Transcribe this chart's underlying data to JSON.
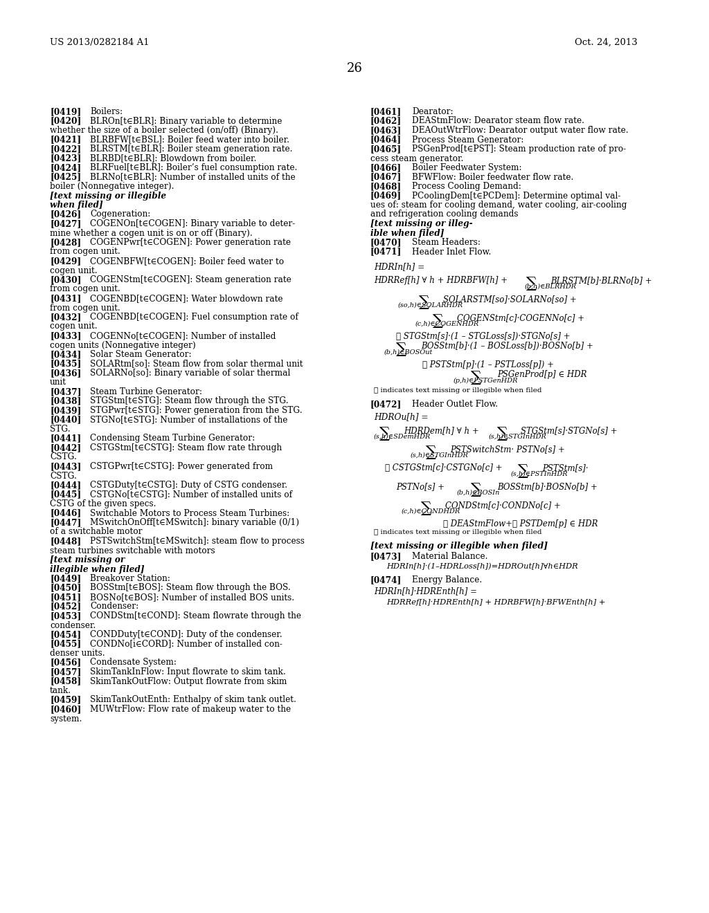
{
  "page_header_left": "US 2013/0282184 A1",
  "page_header_right": "Oct. 24, 2013",
  "page_number": "26",
  "bg": "#ffffff",
  "left_entries": [
    {
      "tag": "[0419]",
      "lines": [
        "Boilers:"
      ],
      "bold_end": false
    },
    {
      "tag": "[0420]",
      "lines": [
        "BLROn[t∈BLR]: Binary variable to determine",
        "whether the size of a boiler selected (on/off) (Binary)."
      ],
      "bold_end": false
    },
    {
      "tag": "[0421]",
      "lines": [
        "BLRBFW[t∈BSL]: Boiler feed water into boiler."
      ],
      "bold_end": false
    },
    {
      "tag": "[0422]",
      "lines": [
        "BLRSTM[t∈BLR]: Boiler steam generation rate."
      ],
      "bold_end": false
    },
    {
      "tag": "[0423]",
      "lines": [
        "BLRBD[t∈BLR]: Blowdown from boiler."
      ],
      "bold_end": false
    },
    {
      "tag": "[0424]",
      "lines": [
        "BLRFuel[t∈BLR]: Boiler’s fuel consumption rate."
      ],
      "bold_end": false
    },
    {
      "tag": "[0425]",
      "lines": [
        "BLRNo[t∈BLR]: Number of installed units of the",
        "boiler (Nonnegative integer). "
      ],
      "bold_end": true,
      "bold_lines": [
        "[text missing or illegible",
        "when filed]"
      ]
    },
    {
      "tag": "[0426]",
      "lines": [
        "Cogeneration:"
      ],
      "bold_end": false
    },
    {
      "tag": "[0427]",
      "lines": [
        "COGENOn[t∈COGEN]: Binary variable to deter-",
        "mine whether a cogen unit is on or off (Binary)."
      ],
      "bold_end": false
    },
    {
      "tag": "[0428]",
      "lines": [
        "COGENPwr[t∈COGEN]: Power generation rate",
        "from cogen unit."
      ],
      "bold_end": false
    },
    {
      "tag": "[0429]",
      "lines": [
        "COGENBFW[t∈COGEN]: Boiler feed water to",
        "cogen unit."
      ],
      "bold_end": false
    },
    {
      "tag": "[0430]",
      "lines": [
        "COGENStm[t∈COGEN]: Steam generation rate",
        "from cogen unit."
      ],
      "bold_end": false
    },
    {
      "tag": "[0431]",
      "lines": [
        "COGENBD[t∈COGEN]: Water blowdown rate",
        "from cogen unit."
      ],
      "bold_end": false
    },
    {
      "tag": "[0432]",
      "lines": [
        "COGENBD[t∈COGEN]: Fuel consumption rate of",
        "cogen unit."
      ],
      "bold_end": false
    },
    {
      "tag": "[0433]",
      "lines": [
        "COGENNo[t∈COGEN]: Number of installed",
        "cogen units (Nonnegative integer)"
      ],
      "bold_end": false
    },
    {
      "tag": "[0434]",
      "lines": [
        "Solar Steam Generator:"
      ],
      "bold_end": false
    },
    {
      "tag": "[0435]",
      "lines": [
        "SOLARtm[so]: Steam flow from solar thermal unit"
      ],
      "bold_end": false
    },
    {
      "tag": "[0436]",
      "lines": [
        "SOLARNo[so]: Binary variable of solar thermal",
        "unit"
      ],
      "bold_end": false
    },
    {
      "tag": "[0437]",
      "lines": [
        "Steam Turbine Generator:"
      ],
      "bold_end": false
    },
    {
      "tag": "[0438]",
      "lines": [
        "STGStm[t∈STG]: Steam flow through the STG."
      ],
      "bold_end": false
    },
    {
      "tag": "[0439]",
      "lines": [
        "STGPwr[t∈STG]: Power generation from the STG."
      ],
      "bold_end": false
    },
    {
      "tag": "[0440]",
      "lines": [
        "STGNo[t∈STG]: Number of installations of the",
        "STG."
      ],
      "bold_end": false
    },
    {
      "tag": "[0441]",
      "lines": [
        "Condensing Steam Turbine Generator:"
      ],
      "bold_end": false
    },
    {
      "tag": "[0442]",
      "lines": [
        "CSTGStm[t∈CSTG]: Steam flow rate through",
        "CSTG."
      ],
      "bold_end": false
    },
    {
      "tag": "[0443]",
      "lines": [
        "CSTGPwr[t∈CSTG]: Power generated from",
        "CSTG."
      ],
      "bold_end": false
    },
    {
      "tag": "[0444]",
      "lines": [
        "CSTGDuty[t∈CSTG]: Duty of CSTG condenser."
      ],
      "bold_end": false
    },
    {
      "tag": "[0445]",
      "lines": [
        "CSTGNo[t∈CSTG]: Number of installed units of",
        "CSTG of the given specs."
      ],
      "bold_end": false
    },
    {
      "tag": "[0446]",
      "lines": [
        "Switchable Motors to Process Steam Turbines:"
      ],
      "bold_end": false
    },
    {
      "tag": "[0447]",
      "lines": [
        "MSwitchOnOff[t∈MSwitch]: binary variable (0/1)",
        "of a switchable motor"
      ],
      "bold_end": false
    },
    {
      "tag": "[0448]",
      "lines": [
        "PSTSwitchStm[t∈MSwitch]: steam flow to process",
        "steam turbines switchable with motors "
      ],
      "bold_end": true,
      "bold_lines": [
        "[text missing or",
        "illegible when filed]"
      ]
    },
    {
      "tag": "[0449]",
      "lines": [
        "Breakover Station:"
      ],
      "bold_end": false
    },
    {
      "tag": "[0450]",
      "lines": [
        "BOSStm[t∈BOS]: Steam flow through the BOS."
      ],
      "bold_end": false
    },
    {
      "tag": "[0451]",
      "lines": [
        "BOSNo[t∈BOS]: Number of installed BOS units."
      ],
      "bold_end": false
    },
    {
      "tag": "[0452]",
      "lines": [
        "Condenser:"
      ],
      "bold_end": false
    },
    {
      "tag": "[0453]",
      "lines": [
        "CONDStm[t∈COND]: Steam flowrate through the",
        "condenser."
      ],
      "bold_end": false
    },
    {
      "tag": "[0454]",
      "lines": [
        "CONDDuty[t∈COND]: Duty of the condenser."
      ],
      "bold_end": false
    },
    {
      "tag": "[0455]",
      "lines": [
        "CONDNo[i∈CORD]: Number of installed con-",
        "denser units."
      ],
      "bold_end": false
    },
    {
      "tag": "[0456]",
      "lines": [
        "Condensate System:"
      ],
      "bold_end": false
    },
    {
      "tag": "[0457]",
      "lines": [
        "SkimTankInFlow: Input flowrate to skim tank."
      ],
      "bold_end": false
    },
    {
      "tag": "[0458]",
      "lines": [
        "SkimTankOutFlow: Output flowrate from skim",
        "tank."
      ],
      "bold_end": false
    },
    {
      "tag": "[0459]",
      "lines": [
        "SkimTankOutEnth: Enthalpy of skim tank outlet."
      ],
      "bold_end": false
    },
    {
      "tag": "[0460]",
      "lines": [
        "MUWtrFlow: Flow rate of makeup water to the",
        "system."
      ],
      "bold_end": false
    }
  ],
  "right_entries": [
    {
      "tag": "[0461]",
      "lines": [
        "Dearator:"
      ],
      "bold_end": false
    },
    {
      "tag": "[0462]",
      "lines": [
        "DEAStmFlow: Dearator steam flow rate."
      ],
      "bold_end": false
    },
    {
      "tag": "[0463]",
      "lines": [
        "DEAOutWtrFlow: Dearator output water flow rate."
      ],
      "bold_end": false
    },
    {
      "tag": "[0464]",
      "lines": [
        "Process Steam Generator:"
      ],
      "bold_end": false
    },
    {
      "tag": "[0465]",
      "lines": [
        "PSGenProd[t∈PST]: Steam production rate of pro-",
        "cess steam generator."
      ],
      "bold_end": false
    },
    {
      "tag": "[0466]",
      "lines": [
        "Boiler Feedwater System:"
      ],
      "bold_end": false
    },
    {
      "tag": "[0467]",
      "lines": [
        "BFWFlow: Boiler feedwater flow rate."
      ],
      "bold_end": false
    },
    {
      "tag": "[0468]",
      "lines": [
        "Process Cooling Demand:"
      ],
      "bold_end": false
    },
    {
      "tag": "[0469]",
      "lines": [
        "PCoolingDem[t∈PCDem]: Determine optimal val-",
        "ues of: steam for cooling demand, water cooling, air-cooling",
        "and refrigeration cooling demands "
      ],
      "bold_end": true,
      "bold_lines": [
        "[text missing or illeg-",
        "ible when filed]"
      ]
    },
    {
      "tag": "[0470]",
      "lines": [
        "Steam Headers:"
      ],
      "bold_end": false
    },
    {
      "tag": "[0471]",
      "lines": [
        "Header Inlet Flow."
      ],
      "bold_end": false
    }
  ]
}
